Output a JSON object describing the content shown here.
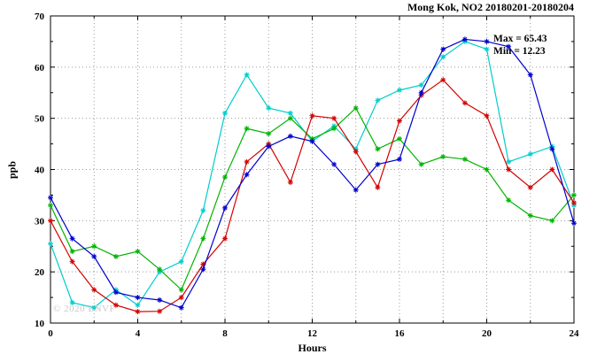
{
  "title": "Mong Kok, NO2 20180201-20180204",
  "annotation": {
    "max": "Max = 65.43",
    "min": "Min = 12.23"
  },
  "watermark": "© 2020 ENVF",
  "chart_data": {
    "type": "line",
    "title": "Mong Kok, NO2 20180201-20180204",
    "xlabel": "Hours",
    "ylabel": "ppb",
    "xlim": [
      0,
      24
    ],
    "ylim": [
      10,
      70
    ],
    "xticks": [
      0,
      4,
      8,
      12,
      16,
      20,
      24
    ],
    "yticks": [
      10,
      20,
      30,
      40,
      50,
      60,
      70
    ],
    "grid": true,
    "grid_x_step": 2,
    "legend": "none",
    "max_value": 65.43,
    "min_value": 12.23,
    "x": [
      0,
      1,
      2,
      3,
      4,
      5,
      6,
      7,
      8,
      9,
      10,
      11,
      12,
      13,
      14,
      15,
      16,
      17,
      18,
      19,
      20,
      21,
      22,
      23,
      24
    ],
    "series": [
      {
        "name": "cyan",
        "color": "#00cdcd",
        "values": [
          25.5,
          14,
          13,
          16.5,
          13.5,
          20,
          22,
          32,
          51,
          58.5,
          52,
          51,
          45.5,
          48.5,
          44,
          53.5,
          55.5,
          56.5,
          62,
          65,
          63.5,
          41.5,
          43,
          44.5,
          33
        ]
      },
      {
        "name": "green",
        "color": "#00b400",
        "values": [
          33,
          24,
          25,
          23,
          24,
          20.5,
          16.5,
          26.5,
          38.5,
          48,
          47,
          50,
          46,
          48,
          52,
          44,
          46,
          41,
          42.5,
          42,
          40,
          34,
          31,
          30,
          35
        ]
      },
      {
        "name": "red",
        "color": "#d40000",
        "values": [
          30,
          22,
          16.5,
          13.5,
          12.23,
          12.3,
          15,
          21.5,
          26.5,
          41.5,
          45,
          37.5,
          50.5,
          50,
          43.5,
          36.5,
          49.5,
          54.5,
          57.5,
          53,
          50.5,
          40,
          36.5,
          40,
          33.5
        ]
      },
      {
        "name": "blue",
        "color": "#0000cd",
        "values": [
          34.5,
          26.5,
          23,
          16,
          15,
          14.5,
          13,
          20.5,
          32.5,
          39,
          44.5,
          46.5,
          45.5,
          41,
          36,
          41,
          42,
          55,
          63.5,
          65.43,
          65,
          64,
          58.5,
          44,
          29.5
        ]
      }
    ]
  }
}
